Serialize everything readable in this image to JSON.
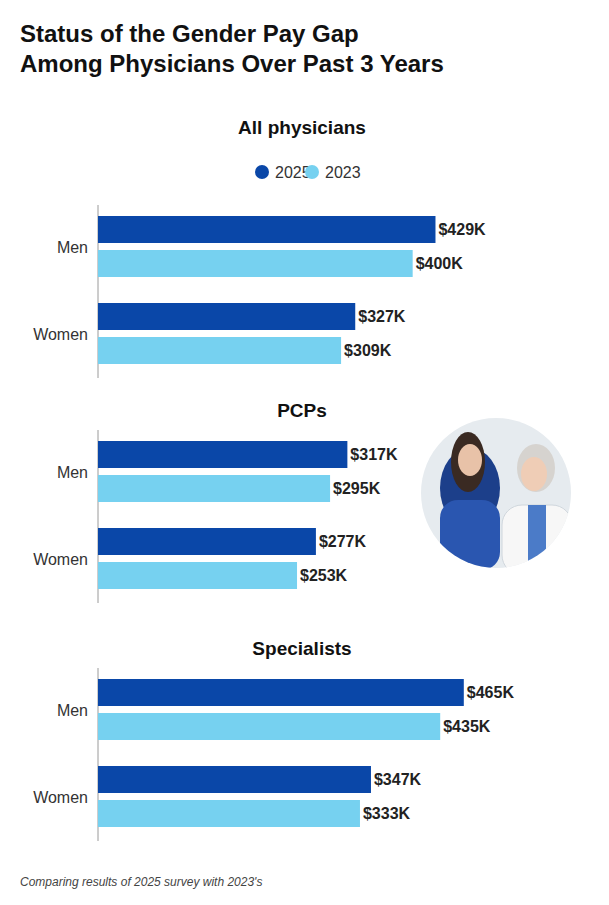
{
  "title": "Status of the Gender Pay Gap\nAmong Physicians Over Past 3 Years",
  "note": "Comparing results of 2025 survey with 2023's",
  "chart_data": [
    {
      "type": "bar",
      "orientation": "horizontal",
      "title": "All physicians",
      "categories": [
        "Men",
        "Women"
      ],
      "xlim": [
        0,
        600
      ],
      "tick_labels": false,
      "data_labels": true,
      "legend": "top",
      "series": [
        {
          "name": "2025",
          "color": "#0a47a8",
          "values": [
            429,
            327
          ],
          "value_labels": [
            "$429K",
            "$327K"
          ]
        },
        {
          "name": "2023",
          "color": "#76d1f0",
          "values": [
            400,
            309
          ],
          "value_labels": [
            "$400K",
            "$309K"
          ]
        }
      ]
    },
    {
      "type": "bar",
      "orientation": "horizontal",
      "title": "PCPs",
      "categories": [
        "Men",
        "Women"
      ],
      "xlim": [
        0,
        600
      ],
      "tick_labels": false,
      "data_labels": true,
      "series": [
        {
          "color": "#0a47a8",
          "values": [
            317,
            277
          ],
          "value_labels": [
            "$317K",
            "$277K"
          ]
        },
        {
          "color": "#76d1f0",
          "values": [
            295,
            253
          ],
          "value_labels": [
            "$295K",
            "$253K"
          ]
        }
      ]
    },
    {
      "type": "bar",
      "orientation": "horizontal",
      "title": "Specialists",
      "categories": [
        "Men",
        "Women"
      ],
      "xlim": [
        0,
        600
      ],
      "tick_labels": false,
      "data_labels": true,
      "series": [
        {
          "color": "#0a47a8",
          "values": [
            465,
            347
          ],
          "value_labels": [
            "$465K",
            "$347K"
          ]
        },
        {
          "color": "#76d1f0",
          "values": [
            435,
            333
          ],
          "value_labels": [
            "$435K",
            "$333K"
          ]
        }
      ]
    }
  ]
}
